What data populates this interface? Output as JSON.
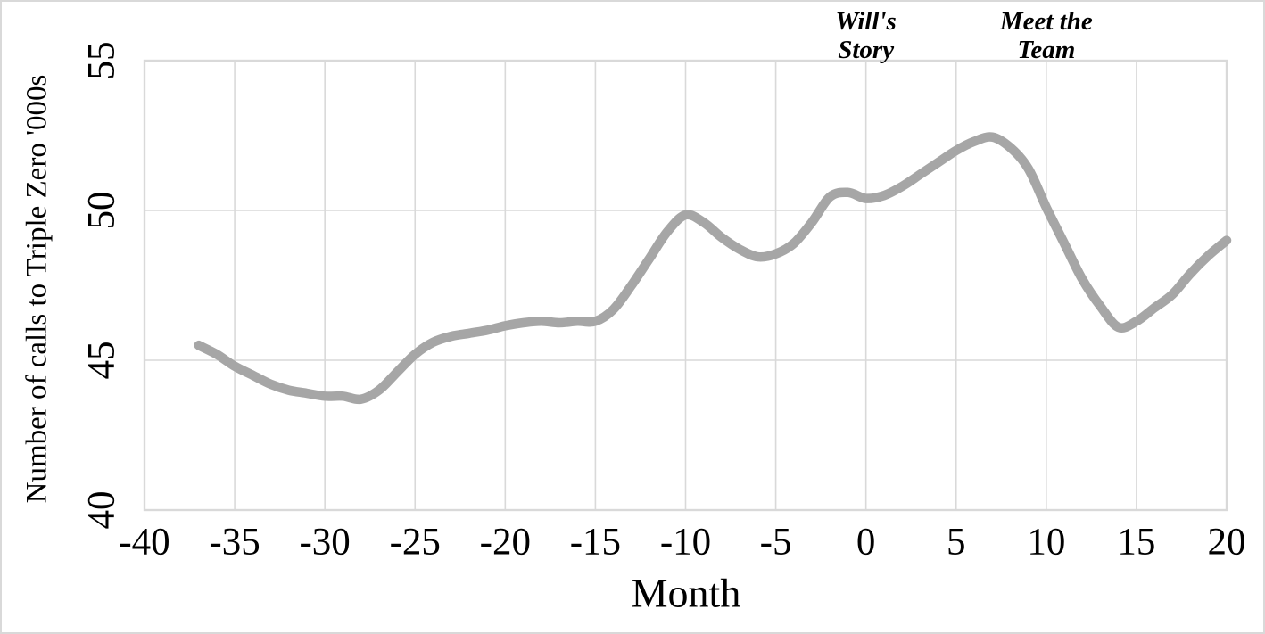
{
  "page": {
    "background_color": "#FFFFFF",
    "border_color": "#D9D9D9"
  },
  "chart_data": {
    "type": "line",
    "title": "",
    "xlabel": "Month",
    "ylabel": "Number of calls to Triple Zero '000s",
    "xlim": [
      -40,
      20
    ],
    "ylim": [
      40,
      55
    ],
    "x_ticks": [
      -40,
      -35,
      -30,
      -25,
      -20,
      -15,
      -10,
      -5,
      0,
      5,
      10,
      15,
      20
    ],
    "y_ticks": [
      40,
      45,
      50,
      55
    ],
    "grid": true,
    "legend": "none",
    "line_color": "#A6A6A6",
    "gridline_color": "#D9D9D9",
    "frame_color": "#D9D9D9",
    "annotations": [
      {
        "name": "annotation-wills-story",
        "lines": [
          "Will's",
          "Story"
        ],
        "x": 0
      },
      {
        "name": "annotation-meet-the-team",
        "lines": [
          "Meet the",
          "Team"
        ],
        "x": 10
      }
    ],
    "series": [
      {
        "name": "Number of calls to Triple Zero",
        "x": [
          -37,
          -36,
          -35,
          -34,
          -33,
          -32,
          -31,
          -30,
          -29,
          -28,
          -27,
          -26,
          -25,
          -24,
          -23,
          -22,
          -21,
          -20,
          -19,
          -18,
          -17,
          -16,
          -15,
          -14,
          -13,
          -12,
          -11,
          -10,
          -9,
          -8,
          -7,
          -6,
          -5,
          -4,
          -3,
          -2,
          -1,
          0,
          1,
          2,
          3,
          4,
          5,
          6,
          7,
          8,
          9,
          10,
          11,
          12,
          13,
          14,
          15,
          16,
          17,
          18,
          19,
          20
        ],
        "y": [
          45.5,
          45.2,
          44.8,
          44.5,
          44.2,
          44.0,
          43.9,
          43.8,
          43.8,
          43.7,
          44.0,
          44.6,
          45.2,
          45.6,
          45.8,
          45.9,
          46.0,
          46.15,
          46.25,
          46.3,
          46.25,
          46.3,
          46.3,
          46.7,
          47.5,
          48.4,
          49.3,
          49.85,
          49.6,
          49.1,
          48.7,
          48.45,
          48.55,
          48.9,
          49.6,
          50.45,
          50.6,
          50.4,
          50.5,
          50.8,
          51.2,
          51.6,
          52.0,
          52.3,
          52.45,
          52.1,
          51.4,
          50.1,
          48.9,
          47.7,
          46.8,
          46.1,
          46.3,
          46.75,
          47.2,
          47.9,
          48.5,
          49.0
        ]
      }
    ]
  }
}
